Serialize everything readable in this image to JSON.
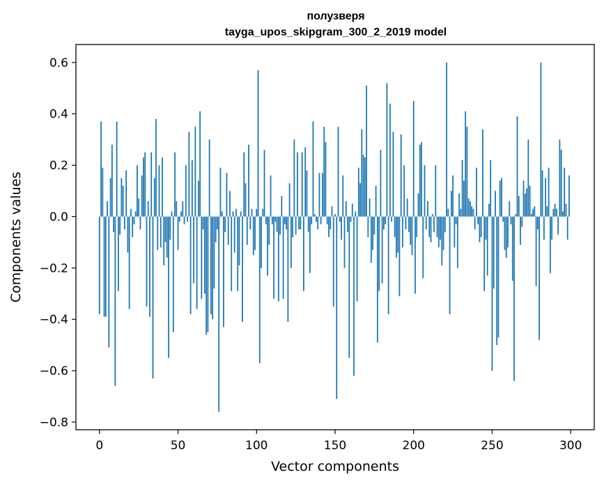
{
  "chart_data": {
    "type": "bar",
    "title": "полузверя",
    "subtitle": "tayga_upos_skipgram_300_2_2019 model",
    "xlabel": "Vector components",
    "ylabel": "Components values",
    "xlim": [
      -15,
      315
    ],
    "ylim": [
      -0.83,
      0.67
    ],
    "xticks": [
      0,
      50,
      100,
      150,
      200,
      250,
      300
    ],
    "yticks": [
      -0.8,
      -0.6,
      -0.4,
      -0.2,
      0.0,
      0.2,
      0.4,
      0.6
    ],
    "ytick_labels": [
      "−0.8",
      "−0.6",
      "−0.4",
      "−0.2",
      "0.0",
      "0.2",
      "0.4",
      "0.6"
    ],
    "grid": false,
    "bar_color": "#1f77b4",
    "values": [
      -0.38,
      0.37,
      0.19,
      -0.39,
      -0.39,
      0.06,
      -0.51,
      0.15,
      0.28,
      -0.06,
      -0.66,
      0.37,
      -0.29,
      -0.07,
      0.15,
      0.12,
      -0.05,
      0.18,
      -0.14,
      -0.36,
      0.03,
      -0.08,
      -0.03,
      0.02,
      0.2,
      0.07,
      -0.05,
      0.16,
      0.23,
      0.25,
      -0.35,
      0.06,
      -0.39,
      0.25,
      -0.63,
      0.15,
      0.38,
      -0.13,
      0.2,
      -0.12,
      0.23,
      -0.19,
      -0.1,
      -0.16,
      -0.55,
      -0.09,
      0.02,
      -0.45,
      0.25,
      0.06,
      -0.13,
      -0.02,
      0.02,
      0.06,
      -0.03,
      0.2,
      -0.02,
      0.33,
      -0.38,
      0.22,
      -0.26,
      0.35,
      -0.36,
      0.14,
      0.41,
      -0.32,
      -0.05,
      -0.3,
      -0.46,
      -0.45,
      0.3,
      -0.38,
      -0.4,
      -0.28,
      -0.1,
      -0.05,
      -0.76,
      0.19,
      0.02,
      -0.43,
      -0.06,
      0.17,
      -0.11,
      0.1,
      -0.29,
      0.02,
      -0.14,
      0.03,
      -0.29,
      -0.19,
      0.02,
      -0.41,
      0.25,
      0.13,
      -0.11,
      0.28,
      -0.05,
      0.03,
      -0.15,
      -0.13,
      0.03,
      0.57,
      -0.57,
      -0.2,
      0.03,
      0.26,
      -0.03,
      -0.23,
      -0.11,
      0.16,
      -0.03,
      -0.32,
      -0.02,
      -0.06,
      -0.33,
      -0.07,
      0.08,
      -0.32,
      -0.03,
      -0.05,
      -0.41,
      0.13,
      -0.2,
      -0.08,
      0.3,
      -0.07,
      0.25,
      -0.05,
      -0.05,
      0.25,
      -0.29,
      0.27,
      0.18,
      -0.06,
      -0.22,
      -0.03,
      0.37,
      0.01,
      -0.02,
      -0.05,
      0.17,
      -0.03,
      0.17,
      0.35,
      0.29,
      -0.03,
      -0.08,
      -0.05,
      0.04,
      -0.35,
      0.01,
      -0.71,
      0.35,
      -0.02,
      -0.09,
      0.16,
      -0.2,
      0.06,
      -0.06,
      -0.55,
      -0.02,
      0.05,
      -0.62,
      0.02,
      -0.33,
      0.19,
      0.13,
      0.34,
      0.24,
      0.23,
      0.51,
      -0.08,
      0.07,
      -0.18,
      -0.13,
      -0.07,
      0.12,
      -0.49,
      -0.29,
      0.26,
      -0.26,
      -0.05,
      -0.03,
      0.52,
      -0.38,
      0.44,
      -0.02,
      0.33,
      -0.08,
      -0.16,
      -0.14,
      -0.31,
      0.32,
      -0.12,
      0.2,
      -0.05,
      0.07,
      -0.06,
      -0.11,
      -0.15,
      0.45,
      -0.3,
      -0.08,
      0.09,
      0.28,
      0.29,
      -0.24,
      0.2,
      -0.05,
      0.06,
      -0.08,
      -0.1,
      0.01,
      -0.06,
      0.2,
      -0.08,
      -0.12,
      -0.09,
      -0.19,
      -0.13,
      -0.06,
      0.6,
      0.03,
      -0.38,
      0.1,
      0.16,
      -0.12,
      -0.03,
      -0.2,
      0.09,
      0.03,
      0.22,
      0.14,
      0.41,
      0.35,
      0.07,
      0.06,
      0.04,
      0.03,
      -0.05,
      0.19,
      -0.03,
      -0.1,
      -0.08,
      0.34,
      -0.29,
      -0.09,
      -0.23,
      0.05,
      0.22,
      -0.6,
      -0.28,
      0.1,
      -0.5,
      -0.47,
      0.14,
      0.15,
      -0.02,
      -0.13,
      -0.16,
      -0.12,
      0.06,
      -0.03,
      -0.25,
      -0.64,
      0.01,
      0.39,
      0.08,
      -0.11,
      -0.04,
      0.14,
      0.09,
      0.11,
      0.3,
      0.12,
      0.01,
      0.03,
      0.04,
      -0.27,
      -0.05,
      -0.48,
      0.6,
      0.18,
      -0.09,
      0.15,
      0.04,
      0.19,
      -0.22,
      -0.09,
      0.03,
      0.05,
      0.03,
      -0.07,
      0.3,
      0.26,
      0.02,
      0.19,
      0.05,
      -0.09,
      0.16
    ]
  }
}
